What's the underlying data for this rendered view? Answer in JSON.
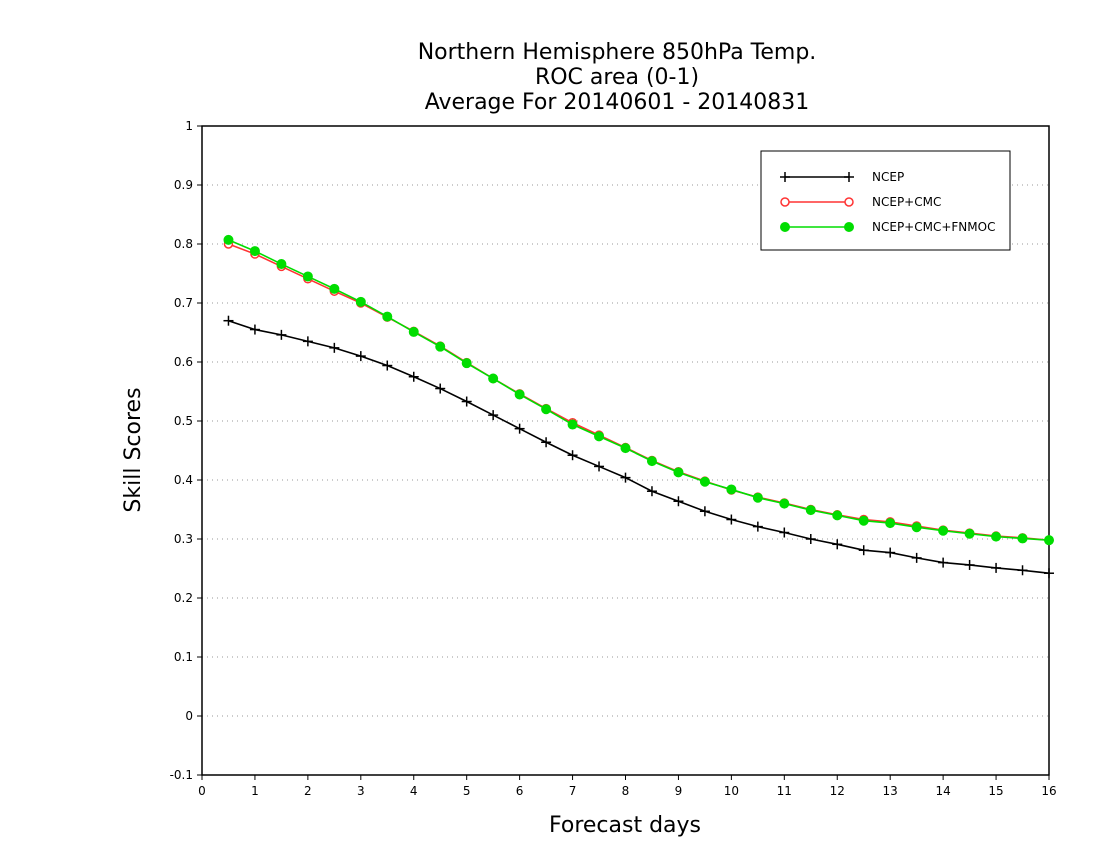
{
  "chart_data": {
    "type": "line",
    "title": [
      "Northern Hemisphere 850hPa Temp.",
      "ROC area (0-1)",
      "Average For 20140601 - 20140831"
    ],
    "xlabel": "Forecast days",
    "ylabel": "Skill Scores",
    "xlim": [
      0,
      16
    ],
    "ylim": [
      -0.1,
      1
    ],
    "xticks": [
      "0",
      "1",
      "2",
      "3",
      "4",
      "5",
      "6",
      "7",
      "8",
      "9",
      "10",
      "11",
      "12",
      "13",
      "14",
      "15",
      "16"
    ],
    "yticks": [
      "-0.1",
      "0",
      "0.1",
      "0.2",
      "0.3",
      "0.4",
      "0.5",
      "0.6",
      "0.7",
      "0.8",
      "0.9",
      "1"
    ],
    "grid": "horizontal dotted",
    "legend_position": "top-right",
    "x": [
      0.5,
      1,
      1.5,
      2,
      2.5,
      3,
      3.5,
      4,
      4.5,
      5,
      5.5,
      6,
      6.5,
      7,
      7.5,
      8,
      8.5,
      9,
      9.5,
      10,
      10.5,
      11,
      11.5,
      12,
      12.5,
      13,
      13.5,
      14,
      14.5,
      15,
      15.5,
      16
    ],
    "series": [
      {
        "name": "NCEP",
        "color": "#000000",
        "marker": "plus",
        "values": [
          0.67,
          0.655,
          0.646,
          0.635,
          0.624,
          0.61,
          0.594,
          0.575,
          0.555,
          0.533,
          0.51,
          0.487,
          0.464,
          0.442,
          0.423,
          0.404,
          0.381,
          0.364,
          0.347,
          0.333,
          0.321,
          0.311,
          0.3,
          0.291,
          0.281,
          0.277,
          0.268,
          0.26,
          0.256,
          0.251,
          0.247,
          0.242
        ]
      },
      {
        "name": "NCEP+CMC",
        "color": "#ff3333",
        "marker": "open-circle",
        "values": [
          0.8,
          0.783,
          0.762,
          0.741,
          0.72,
          0.7,
          0.676,
          0.652,
          0.627,
          0.599,
          0.572,
          0.546,
          0.521,
          0.497,
          0.476,
          0.455,
          0.433,
          0.414,
          0.398,
          0.383,
          0.371,
          0.361,
          0.35,
          0.341,
          0.333,
          0.329,
          0.322,
          0.315,
          0.31,
          0.305,
          0.302,
          0.298
        ]
      },
      {
        "name": "NCEP+CMC+FNMOC",
        "color": "#00dd00",
        "marker": "filled-circle",
        "values": [
          0.807,
          0.788,
          0.766,
          0.745,
          0.724,
          0.702,
          0.677,
          0.651,
          0.626,
          0.598,
          0.572,
          0.545,
          0.52,
          0.494,
          0.474,
          0.454,
          0.432,
          0.413,
          0.397,
          0.384,
          0.37,
          0.36,
          0.349,
          0.34,
          0.331,
          0.327,
          0.32,
          0.314,
          0.309,
          0.304,
          0.301,
          0.298
        ]
      }
    ]
  }
}
